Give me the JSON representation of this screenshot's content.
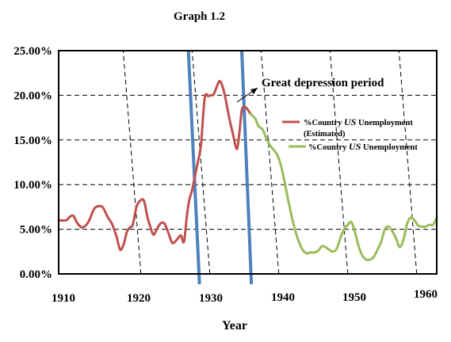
{
  "chart_data": {
    "type": "line",
    "title": "Graph 1.2",
    "xlabel": "Year",
    "ylabel": "",
    "xlim": [
      1910,
      1961
    ],
    "ylim": [
      0,
      0.25
    ],
    "x_ticks": [
      "1910",
      "1920",
      "1930",
      "1940",
      "1950",
      "1960"
    ],
    "y_ticks": [
      "0.00%",
      "5.00%",
      "10.00%",
      "15.00%",
      "20.00%",
      "25.00%"
    ],
    "grid": "dashed",
    "legend_position": "right",
    "annotation": {
      "text": "Great depression period",
      "x0": 1929,
      "x1": 1936
    },
    "colors": {
      "estimated": "#c0504d",
      "actual": "#9bbb59",
      "period_line": "#4f81bd",
      "grid": "#000000"
    },
    "series": [
      {
        "name": "%Country US Unemployment (Estimated)",
        "name_parts": [
          "%Country ",
          "US",
          " Unemployment",
          "(Estimated)"
        ],
        "x": [
          1910,
          1911,
          1911.5,
          1912,
          1912.5,
          1913.2,
          1914,
          1914.8,
          1915.5,
          1916,
          1916.6,
          1917.2,
          1917.8,
          1918.3,
          1918.8,
          1919.2,
          1919.6,
          1920,
          1920.5,
          1921,
          1921.5,
          1922,
          1922.4,
          1922.8,
          1923.3,
          1923.8,
          1924.3,
          1924.8,
          1925.3,
          1925.7,
          1926.1,
          1926.5,
          1926.9,
          1927.3,
          1927.6,
          1928,
          1928.4,
          1928.8,
          1929.2,
          1929.7,
          1930.2,
          1930.5,
          1930.9,
          1931.3,
          1931.7,
          1932.1,
          1932.5,
          1933,
          1933.5,
          1934,
          1934.3,
          1934.7,
          1935.1,
          1935.5,
          1935.9
        ],
        "values": [
          0.06,
          0.06,
          0.064,
          0.065,
          0.057,
          0.052,
          0.058,
          0.073,
          0.076,
          0.074,
          0.064,
          0.056,
          0.042,
          0.027,
          0.034,
          0.047,
          0.052,
          0.055,
          0.075,
          0.082,
          0.082,
          0.063,
          0.052,
          0.044,
          0.051,
          0.057,
          0.056,
          0.046,
          0.035,
          0.036,
          0.04,
          0.043,
          0.036,
          0.065,
          0.082,
          0.094,
          0.11,
          0.126,
          0.145,
          0.197,
          0.199,
          0.2,
          0.201,
          0.209,
          0.216,
          0.21,
          0.197,
          0.175,
          0.157,
          0.14,
          0.152,
          0.183,
          0.187,
          0.184,
          0.179
        ]
      },
      {
        "name": "%Country US Unemployment",
        "name_parts": [
          "%Country ",
          "US",
          " Unemployment"
        ],
        "x": [
          1935.9,
          1936.5,
          1937,
          1937.5,
          1938,
          1938.5,
          1939,
          1939.5,
          1940,
          1940.5,
          1941,
          1941.5,
          1942,
          1942.5,
          1943,
          1943.5,
          1944,
          1944.5,
          1945,
          1945.5,
          1946,
          1946.5,
          1947,
          1947.5,
          1948,
          1948.5,
          1949,
          1949.5,
          1950,
          1950.5,
          1951,
          1951.5,
          1952,
          1952.5,
          1953,
          1953.5,
          1954,
          1954.5,
          1955,
          1955.5,
          1956,
          1956.5,
          1957,
          1957.5,
          1958,
          1958.5,
          1959,
          1959.5,
          1960,
          1960.5,
          1961
        ],
        "values": [
          0.179,
          0.174,
          0.165,
          0.162,
          0.152,
          0.144,
          0.139,
          0.133,
          0.121,
          0.102,
          0.081,
          0.062,
          0.046,
          0.034,
          0.026,
          0.023,
          0.024,
          0.024,
          0.026,
          0.031,
          0.03,
          0.027,
          0.025,
          0.028,
          0.04,
          0.05,
          0.055,
          0.058,
          0.046,
          0.03,
          0.02,
          0.016,
          0.016,
          0.019,
          0.027,
          0.036,
          0.05,
          0.053,
          0.048,
          0.04,
          0.03,
          0.038,
          0.056,
          0.063,
          0.06,
          0.054,
          0.053,
          0.053,
          0.055,
          0.055,
          0.063
        ]
      }
    ]
  }
}
